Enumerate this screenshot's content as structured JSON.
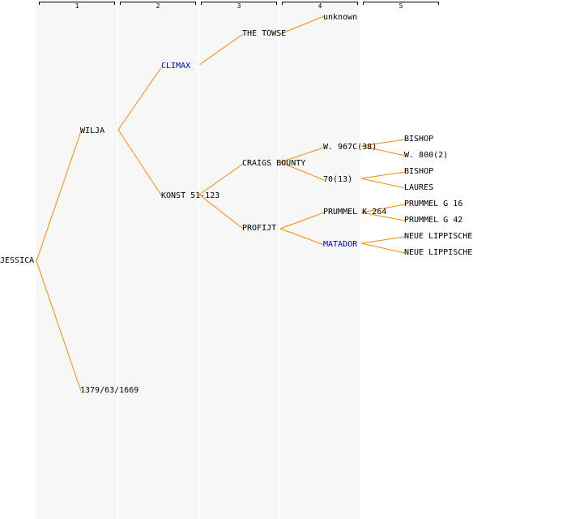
{
  "headers": [
    "1",
    "2",
    "3",
    "4",
    "5"
  ],
  "colors": {
    "line": "#ff8800",
    "link": "#0000cc",
    "band": "#f2f2f2",
    "text": "#000000"
  },
  "nodes": {
    "root": "JESSICA",
    "sire": "WILJA",
    "dam": "1379/63/1669",
    "ss": "CLIMAX",
    "sd": "KONST 51-123",
    "sss": "THE TOWSE",
    "sds": "CRAIGS BOUNTY",
    "sdd": "PROFIJT",
    "ssss": "unknown",
    "sdss": "W. 967C(38)",
    "sdsd": "70(13)",
    "sdds": "PRUMMEL K 264",
    "sddd": "MATADOR",
    "sdsss": "BISHOP",
    "sdssd": "W. 800(2)",
    "sdsds": "BISHOP",
    "sdsdd": "LAURES",
    "sddss": "PRUMMEL G 16",
    "sddsd": "PRUMMEL G 42",
    "sddds": "NEUE LIPPISCHE",
    "sdddd": "NEUE LIPPISCHE"
  }
}
